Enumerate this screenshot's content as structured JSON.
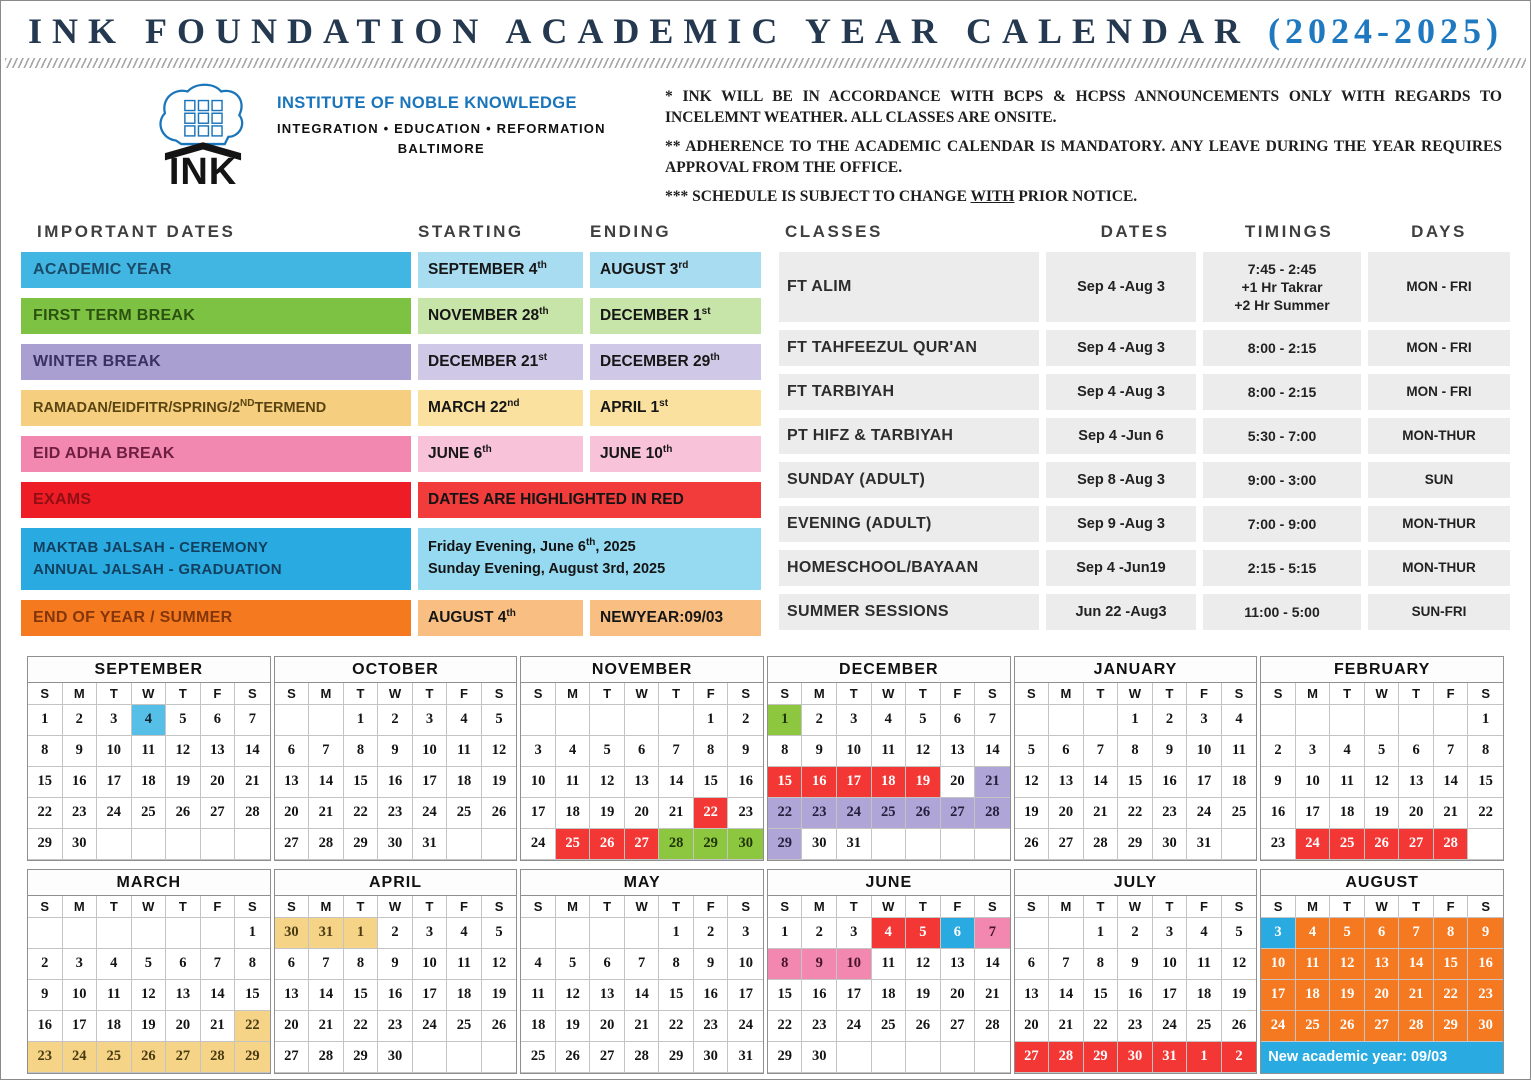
{
  "title": {
    "main": "INK FOUNDATION ACADEMIC YEAR CALENDAR",
    "year": "(2024-2025)"
  },
  "logo": {
    "ink": "INK",
    "org": "INSTITUTE OF NOBLE KNOWLEDGE",
    "tagline": "INTEGRATION • EDUCATION • REFORMATION",
    "city": "BALTIMORE",
    "brand_blue": "#1B75BB"
  },
  "notes": {
    "n1": "* INK WILL BE IN ACCORDANCE WITH BCPS & HCPSS ANNOUNCEMENTS ONLY WITH REGARDS TO INCELEMNT WEATHER. ALL CLASSES ARE ONSITE.",
    "n2": "** ADHERENCE TO THE ACADEMIC CALENDAR IS MANDATORY. ANY LEAVE DURING THE YEAR REQUIRES APPROVAL FROM THE OFFICE.",
    "n3_pre": "*** SCHEDULE IS SUBJECT TO CHANGE ",
    "n3_underline": "WITH",
    "n3_post": " PRIOR NOTICE."
  },
  "important_dates": {
    "headers": [
      "IMPORTANT DATES",
      "STARTING",
      "ENDING"
    ],
    "rows": [
      {
        "type": "dates",
        "label": "ACADEMIC YEAR",
        "label_bg": "#41B6E3",
        "label_fg": "#1A4A68",
        "cell_bg": "#A8DCF0",
        "start": {
          "main": "SEPTEMBER 4",
          "sup": "th"
        },
        "end": {
          "main": "AUGUST 3",
          "sup": "rd"
        }
      },
      {
        "type": "dates",
        "label": "FIRST TERM BREAK",
        "label_bg": "#7DC242",
        "label_fg": "#2C5210",
        "cell_bg": "#C8E5A9",
        "start": {
          "main": "NOVEMBER 28",
          "sup": "th"
        },
        "end": {
          "main": "DECEMBER 1",
          "sup": "st"
        }
      },
      {
        "type": "dates",
        "label": "WINTER BREAK",
        "label_bg": "#A99FD1",
        "label_fg": "#3A3162",
        "cell_bg": "#CFC9E7",
        "start": {
          "main": "DECEMBER 21",
          "sup": "st"
        },
        "end": {
          "main": "DECEMBER 29",
          "sup": "th"
        }
      },
      {
        "type": "dates",
        "label": {
          "pre": "RAMADAN/EIDFITR/SPRING/2",
          "sup": "ND",
          "post": "TERMEND"
        },
        "label_bg": "#F5CF7F",
        "label_fg": "#5A4512",
        "cell_bg": "#FAE19F",
        "start": {
          "main": "MARCH 22",
          "sup": "nd"
        },
        "end": {
          "main": "APRIL 1",
          "sup": "st"
        }
      },
      {
        "type": "dates",
        "label": "EID ADHA BREAK",
        "label_bg": "#F287B0",
        "label_fg": "#6E1E40",
        "cell_bg": "#F8C3D8",
        "start": {
          "main": "JUNE 6",
          "sup": "th"
        },
        "end": {
          "main": "JUNE 10",
          "sup": "th"
        }
      },
      {
        "type": "span",
        "label": "EXAMS",
        "label_bg": "#EE1C25",
        "label_fg": "#8F0F14",
        "cell_bg": "#F23B3B",
        "value": "DATES ARE HIGHLIGHTED IN RED",
        "value_fg": "#141414"
      },
      {
        "type": "double",
        "label_lines": [
          "MAKTAB JALSAH - CEREMONY",
          "ANNUAL JALSAH - GRADUATION"
        ],
        "label_bg": "#29ABE2",
        "label_fg": "#123F5E",
        "cell_bg": "#96DAF2",
        "value_lines": [
          {
            "main": "Friday Evening, June 6",
            "sup": "th",
            "post": ", 2025"
          },
          {
            "main": "Sunday Evening, August 3rd, 2025"
          }
        ],
        "value_fg": "#141414"
      },
      {
        "type": "dates",
        "label": "END OF YEAR / SUMMER",
        "label_bg": "#F4791F",
        "label_fg": "#84350A",
        "cell_bg": "#F9BE82",
        "start": {
          "main": "AUGUST 4",
          "sup": "th"
        },
        "end": {
          "main": "NEWYEAR:09/03"
        }
      }
    ]
  },
  "classes": {
    "headers": [
      "CLASSES",
      "DATES",
      "TIMINGS",
      "DAYS"
    ],
    "rows": [
      {
        "name": "FT ALIM",
        "dates": "Sep 4 -Aug 3",
        "timings": [
          "7:45 - 2:45",
          "+1 Hr Takrar",
          "+2 Hr Summer"
        ],
        "days": "MON - FRI",
        "tall": true
      },
      {
        "name": "FT TAHFEEZUL QUR'AN",
        "dates": "Sep 4 -Aug 3",
        "timings": [
          "8:00 - 2:15"
        ],
        "days": "MON - FRI"
      },
      {
        "name": "FT TARBIYAH",
        "dates": "Sep 4 -Aug 3",
        "timings": [
          "8:00 - 2:15"
        ],
        "days": "MON - FRI"
      },
      {
        "name": "PT HIFZ & TARBIYAH",
        "dates": "Sep 4 -Jun 6",
        "timings": [
          "5:30 - 7:00"
        ],
        "days": "MON-THUR"
      },
      {
        "name": "SUNDAY (ADULT)",
        "dates": "Sep 8 -Aug 3",
        "timings": [
          "9:00 - 3:00"
        ],
        "days": "SUN"
      },
      {
        "name": "EVENING (ADULT)",
        "dates": "Sep 9 -Aug 3",
        "timings": [
          "7:00 - 9:00"
        ],
        "days": "MON-THUR"
      },
      {
        "name": "HOMESCHOOL/BAYAAN",
        "dates": "Sep 4 -Jun19",
        "timings": [
          "2:15 - 5:15"
        ],
        "days": "MON-THUR"
      },
      {
        "name": "SUMMER SESSIONS",
        "dates": "Jun 22 -Aug3",
        "timings": [
          "11:00 - 5:00"
        ],
        "days": "SUN-FRI"
      }
    ]
  },
  "calendar": {
    "weekdays": [
      "S",
      "M",
      "T",
      "W",
      "T",
      "F",
      "S"
    ],
    "highlight_colors": {
      "ay": {
        "bg": "#56BFE8",
        "fg": "#10232e"
      },
      "exam": {
        "bg": "#F23735",
        "fg": "#ffffff"
      },
      "break1": {
        "bg": "#8DC63F",
        "fg": "#1e3307"
      },
      "winter": {
        "bg": "#AFA5D6",
        "fg": "#241f3d"
      },
      "spring": {
        "bg": "#F5D488",
        "fg": "#4a3a10"
      },
      "eid": {
        "bg": "#F287B0",
        "fg": "#471328"
      },
      "jalsah": {
        "bg": "#29ABE2",
        "fg": "#ffffff"
      },
      "summer": {
        "bg": "#F47920",
        "fg": "#ffffff"
      }
    },
    "months": [
      {
        "name": "SEPTEMBER",
        "lead": 0,
        "days": 30,
        "hl": {
          "4": "ay"
        }
      },
      {
        "name": "OCTOBER",
        "lead": 2,
        "days": 31,
        "hl": {}
      },
      {
        "name": "NOVEMBER",
        "lead": 5,
        "days": 30,
        "hl": {
          "22": "exam",
          "25": "exam",
          "26": "exam",
          "27": "exam",
          "28": "break1",
          "29": "break1",
          "30": "break1"
        }
      },
      {
        "name": "DECEMBER",
        "lead": 0,
        "days": 31,
        "hl": {
          "1": "break1",
          "15": "exam",
          "16": "exam",
          "17": "exam",
          "18": "exam",
          "19": "exam",
          "21": "winter",
          "22": "winter",
          "23": "winter",
          "24": "winter",
          "25": "winter",
          "26": "winter",
          "27": "winter",
          "28": "winter",
          "29": "winter"
        }
      },
      {
        "name": "JANUARY",
        "lead": 3,
        "days": 31,
        "hl": {}
      },
      {
        "name": "FEBRUARY",
        "lead": 6,
        "days": 28,
        "hl": {
          "24": "exam",
          "25": "exam",
          "26": "exam",
          "27": "exam",
          "28": "exam"
        }
      },
      {
        "name": "MARCH",
        "lead": 6,
        "days": 29,
        "hl": {
          "22": "spring",
          "23": "spring",
          "24": "spring",
          "25": "spring",
          "26": "spring",
          "27": "spring",
          "28": "spring",
          "29": "spring"
        }
      },
      {
        "name": "APRIL",
        "lead": 0,
        "prefix": [
          {
            "d": 30,
            "h": "spring"
          },
          {
            "d": 31,
            "h": "spring"
          }
        ],
        "days": 30,
        "hl": {
          "1": "spring"
        }
      },
      {
        "name": "MAY",
        "lead": 4,
        "days": 31,
        "hl": {}
      },
      {
        "name": "JUNE",
        "lead": 0,
        "days": 30,
        "hl": {
          "4": "exam",
          "5": "exam",
          "6": "jalsah",
          "7": "eid",
          "8": "eid",
          "9": "eid",
          "10": "eid"
        }
      },
      {
        "name": "JULY",
        "lead": 2,
        "days": 31,
        "suffix": [
          {
            "d": 1,
            "h": "exam"
          },
          {
            "d": 2,
            "h": "exam"
          }
        ],
        "hl": {
          "27": "exam",
          "28": "exam",
          "29": "exam",
          "30": "exam",
          "31": "exam"
        }
      },
      {
        "name": "AUGUST",
        "lead": 0,
        "first": 3,
        "days": 30,
        "hl": {
          "3": "jalsah",
          "4": "summer",
          "5": "summer",
          "6": "summer",
          "7": "summer",
          "8": "summer",
          "9": "summer",
          "10": "summer",
          "11": "summer",
          "12": "summer",
          "13": "summer",
          "14": "summer",
          "15": "summer",
          "16": "summer",
          "17": "summer",
          "18": "summer",
          "19": "summer",
          "20": "summer",
          "21": "summer",
          "22": "summer",
          "23": "summer",
          "24": "summer",
          "25": "summer",
          "26": "summer",
          "27": "summer",
          "28": "summer",
          "29": "summer",
          "30": "summer"
        },
        "footer": "New academic year: 09/03"
      }
    ]
  }
}
